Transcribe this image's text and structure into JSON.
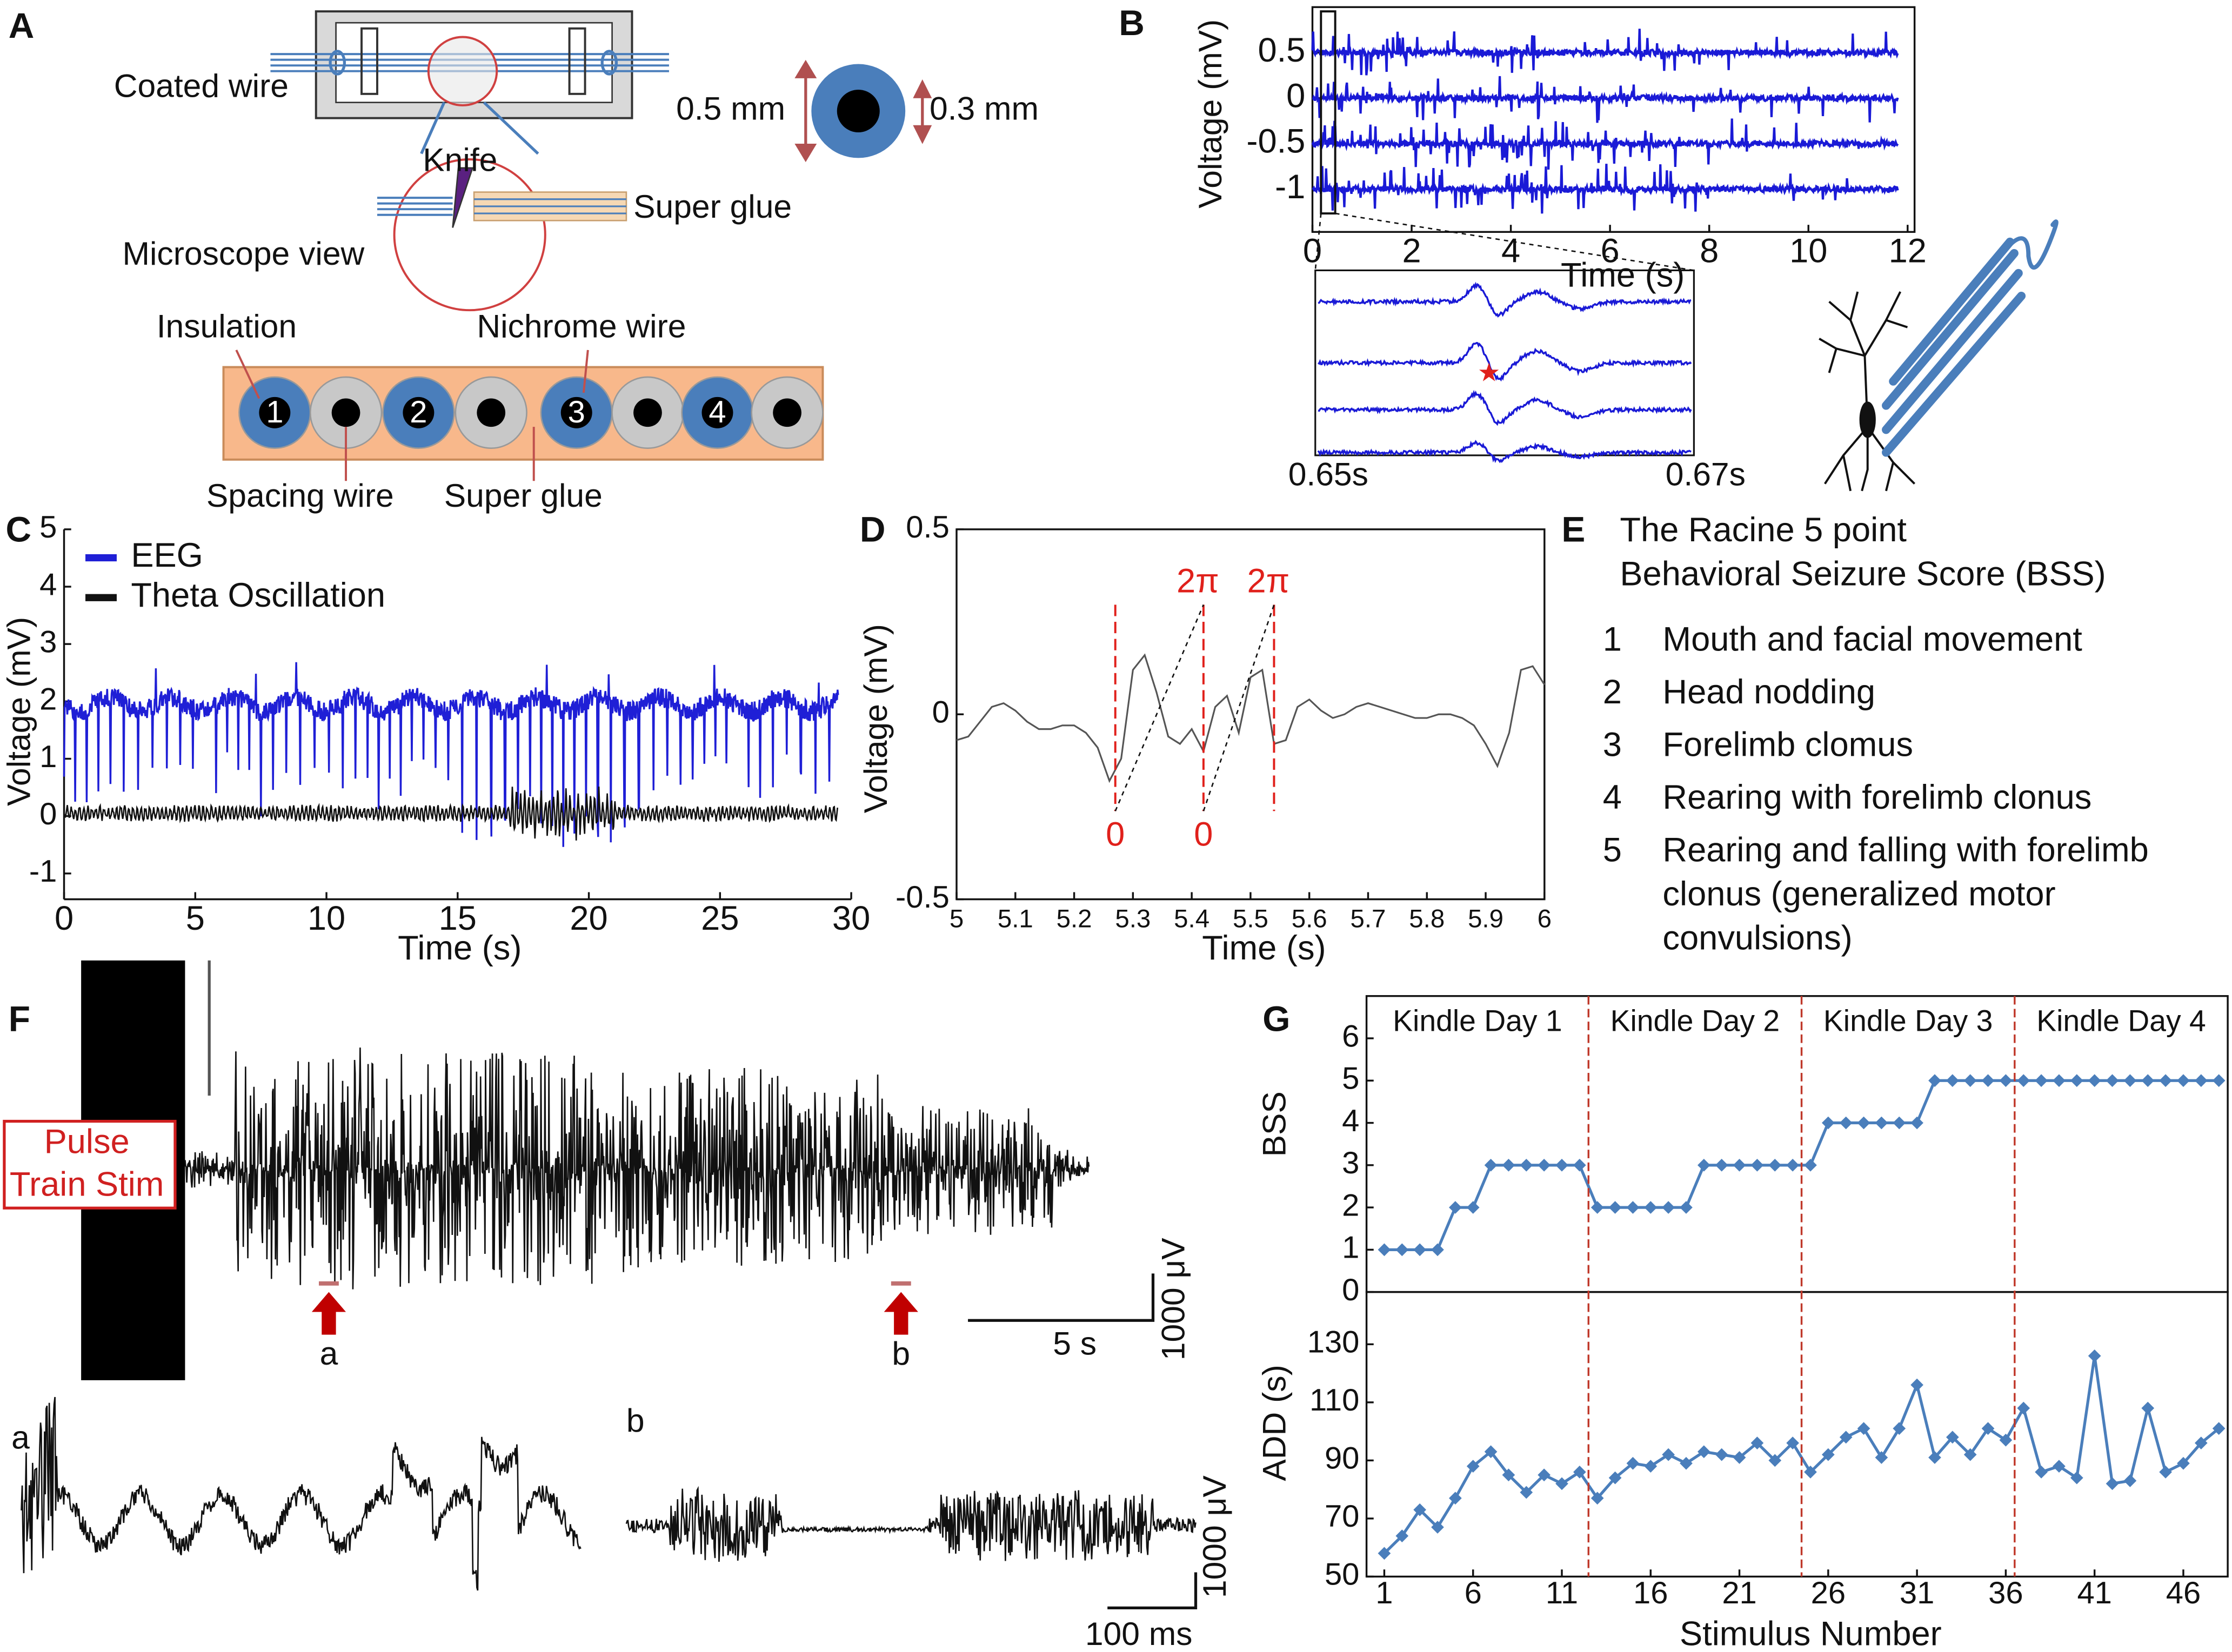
{
  "panel_a": {
    "label": "A",
    "coated_wire": "Coated wire",
    "outer_diameter": "0.5 mm",
    "inner_diameter": "0.3 mm",
    "knife": "Knife",
    "super_glue_top": "Super glue",
    "microscope_view": "Microscope view",
    "insulation": "Insulation",
    "nichrome_wire": "Nichrome wire",
    "channel_numbers": [
      "1",
      "2",
      "3",
      "4"
    ],
    "spacing_wire": "Spacing wire",
    "super_glue_bottom": "Super glue"
  },
  "chart_data": [
    {
      "type": "line",
      "label": "B",
      "xlabel": "Time (s)",
      "ylabel": "Voltage (mV)",
      "color": "#1a1ad6",
      "xlim": [
        0,
        12.14
      ],
      "xticks": [
        0,
        2,
        4,
        6,
        8,
        10,
        12
      ],
      "ylim": [
        -1.47,
        1.0
      ],
      "yticks": [
        0.5,
        0,
        -0.5,
        -1
      ],
      "inset_start": "0.65s",
      "inset_end": "0.67s"
    },
    {
      "type": "line",
      "label": "C",
      "xlabel": "Time (s)",
      "ylabel": "Voltage (mV)",
      "xlim": [
        0,
        30
      ],
      "xticks": [
        0,
        5,
        10,
        15,
        20,
        25,
        30
      ],
      "ylim": [
        -1.45,
        5
      ],
      "yticks": [
        -1,
        0,
        1,
        2,
        3,
        4,
        5
      ],
      "series": [
        {
          "name": "EEG",
          "color": "#1f1fd6"
        },
        {
          "name": "Theta Oscillation",
          "color": "#111111"
        }
      ]
    },
    {
      "type": "line",
      "label": "D",
      "xlabel": "Time (s)",
      "ylabel": "Voltage (mV)",
      "color": "#555555",
      "marker_color": "#e0201b",
      "xlim": [
        5,
        6
      ],
      "xticks": [
        5,
        5.1,
        5.2,
        5.3,
        5.4,
        5.5,
        5.6,
        5.7,
        5.8,
        5.9,
        6
      ],
      "ylim": [
        -0.5,
        0.5
      ],
      "yticks": [
        0.5,
        0,
        -0.5
      ],
      "x": [
        5.0,
        5.02,
        5.04,
        5.06,
        5.08,
        5.1,
        5.12,
        5.14,
        5.16,
        5.18,
        5.2,
        5.22,
        5.24,
        5.26,
        5.28,
        5.3,
        5.32,
        5.34,
        5.36,
        5.38,
        5.4,
        5.42,
        5.44,
        5.46,
        5.48,
        5.5,
        5.52,
        5.54,
        5.56,
        5.58,
        5.6,
        5.62,
        5.64,
        5.66,
        5.68,
        5.7,
        5.72,
        5.74,
        5.76,
        5.78,
        5.8,
        5.82,
        5.84,
        5.86,
        5.88,
        5.9,
        5.92,
        5.94,
        5.96,
        5.98,
        6.0
      ],
      "values": [
        -0.07,
        -0.06,
        -0.02,
        0.02,
        0.03,
        0.01,
        -0.02,
        -0.04,
        -0.04,
        -0.03,
        -0.03,
        -0.05,
        -0.09,
        -0.18,
        -0.12,
        0.12,
        0.16,
        0.06,
        -0.06,
        -0.08,
        -0.04,
        -0.1,
        0.02,
        0.05,
        -0.05,
        0.1,
        0.12,
        -0.08,
        -0.07,
        0.02,
        0.04,
        0.01,
        -0.01,
        0.0,
        0.02,
        0.03,
        0.02,
        0.01,
        0.0,
        -0.01,
        -0.01,
        0.0,
        0.0,
        -0.01,
        -0.03,
        -0.08,
        -0.14,
        -0.05,
        0.12,
        0.13,
        0.08
      ],
      "phase_x": [
        5.27,
        5.42,
        5.54
      ],
      "phase_bottom_labels": [
        "0",
        "0",
        null
      ],
      "phase_top_labels": [
        null,
        "2π",
        "2π"
      ]
    },
    {
      "type": "line",
      "label": "G",
      "ylabel": "BSS",
      "color": "#4a7ebb",
      "xlim": [
        0,
        48.5
      ],
      "ylim": [
        0,
        7
      ],
      "yticks": [
        0,
        1,
        2,
        3,
        4,
        5,
        6
      ],
      "x": [
        1,
        2,
        3,
        4,
        5,
        6,
        7,
        8,
        9,
        10,
        11,
        12,
        13,
        14,
        15,
        16,
        17,
        18,
        19,
        20,
        21,
        22,
        23,
        24,
        25,
        26,
        27,
        28,
        29,
        30,
        31,
        32,
        33,
        34,
        35,
        36,
        37,
        38,
        39,
        40,
        41,
        42,
        43,
        44,
        45,
        46,
        47,
        48
      ],
      "values": [
        1,
        1,
        1,
        1,
        2,
        2,
        3,
        3,
        3,
        3,
        3,
        3,
        2,
        2,
        2,
        2,
        2,
        2,
        3,
        3,
        3,
        3,
        3,
        3,
        3,
        4,
        4,
        4,
        4,
        4,
        4,
        5,
        5,
        5,
        5,
        5,
        5,
        5,
        5,
        5,
        5,
        5,
        5,
        5,
        5,
        5,
        5,
        5
      ],
      "dividers": [
        12.5,
        24.5,
        36.5
      ],
      "divider_color": "#c0392b",
      "day_labels": [
        "Kindle Day 1",
        "Kindle Day 2",
        "Kindle Day 3",
        "Kindle Day 4"
      ]
    },
    {
      "type": "line",
      "ylabel": "ADD (s)",
      "xlabel": "Stimulus Number",
      "color": "#4a7ebb",
      "xlim": [
        0,
        48.5
      ],
      "xticks": [
        1,
        6,
        11,
        16,
        21,
        26,
        31,
        36,
        41,
        46
      ],
      "ylim": [
        50,
        148
      ],
      "yticks": [
        50,
        70,
        90,
        110,
        130
      ],
      "x": [
        1,
        2,
        3,
        4,
        5,
        6,
        7,
        8,
        9,
        10,
        11,
        12,
        13,
        14,
        15,
        16,
        17,
        18,
        19,
        20,
        21,
        22,
        23,
        24,
        25,
        26,
        27,
        28,
        29,
        30,
        31,
        32,
        33,
        34,
        35,
        36,
        37,
        38,
        39,
        40,
        41,
        42,
        43,
        44,
        45,
        46,
        47,
        48
      ],
      "values": [
        58,
        64,
        73,
        67,
        77,
        88,
        93,
        85,
        79,
        85,
        82,
        86,
        77,
        84,
        89,
        88,
        92,
        89,
        93,
        92,
        91,
        96,
        90,
        96,
        86,
        92,
        98,
        101,
        91,
        101,
        116,
        91,
        98,
        92,
        101,
        97,
        108,
        86,
        88,
        84,
        126,
        82,
        83,
        108,
        86,
        89,
        96,
        101
      ]
    }
  ],
  "panel_e": {
    "label": "E",
    "title": [
      "The Racine 5 point",
      "Behavioral Seizure Score (BSS)"
    ],
    "items": [
      {
        "number": "1",
        "text": [
          "Mouth and facial movement"
        ]
      },
      {
        "number": "2",
        "text": [
          "Head nodding"
        ]
      },
      {
        "number": "3",
        "text": [
          "Forelimb clomus"
        ]
      },
      {
        "number": "4",
        "text": [
          "Rearing with forelimb clonus"
        ]
      },
      {
        "number": "5",
        "text": [
          "Rearing and falling with forelimb",
          "clonus (generalized motor",
          "convulsions)"
        ]
      }
    ]
  },
  "panel_f": {
    "label": "F",
    "stim_label": [
      "Pulse",
      "Train Stim"
    ],
    "markers": [
      "a",
      "b"
    ],
    "time_scale": "5 s",
    "voltage_scale": "1000 μV",
    "inset_labels": [
      "a",
      "b"
    ],
    "inset_time_scale": "100 ms",
    "inset_voltage_scale": "1000 μV"
  }
}
